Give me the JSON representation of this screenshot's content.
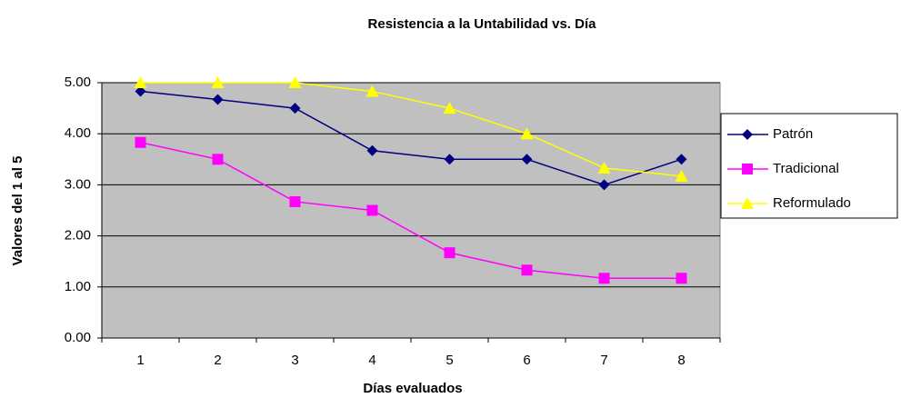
{
  "chart_data": {
    "type": "line",
    "title": "Resistencia a la Untabilidad  vs. Día",
    "x_label": "Días evaluados",
    "y_label": "Valores del 1 al 5",
    "categories": [
      "1",
      "2",
      "3",
      "4",
      "5",
      "6",
      "7",
      "8"
    ],
    "series": [
      {
        "name": "Patrón",
        "color": "#000080",
        "marker": "diamond",
        "values": [
          4.83,
          4.67,
          4.5,
          3.67,
          3.5,
          3.5,
          3.0,
          3.5
        ]
      },
      {
        "name": "Tradicional",
        "color": "#ff00ff",
        "marker": "square",
        "values": [
          3.83,
          3.5,
          2.67,
          2.5,
          1.67,
          1.33,
          1.17,
          1.17
        ]
      },
      {
        "name": "Reformulado",
        "color": "#ffff00",
        "marker": "triangle",
        "values": [
          5.0,
          5.0,
          5.0,
          4.83,
          4.5,
          4.0,
          3.33,
          3.17
        ]
      }
    ],
    "ylim": [
      0,
      5
    ],
    "yticks": [
      {
        "value": 0,
        "label": "0.00"
      },
      {
        "value": 1,
        "label": "1.00"
      },
      {
        "value": 2,
        "label": "2.00"
      },
      {
        "value": 3,
        "label": "3.00"
      },
      {
        "value": 4,
        "label": "4.00"
      },
      {
        "value": 5,
        "label": "5.00"
      }
    ],
    "grid": true,
    "legend": "right"
  }
}
